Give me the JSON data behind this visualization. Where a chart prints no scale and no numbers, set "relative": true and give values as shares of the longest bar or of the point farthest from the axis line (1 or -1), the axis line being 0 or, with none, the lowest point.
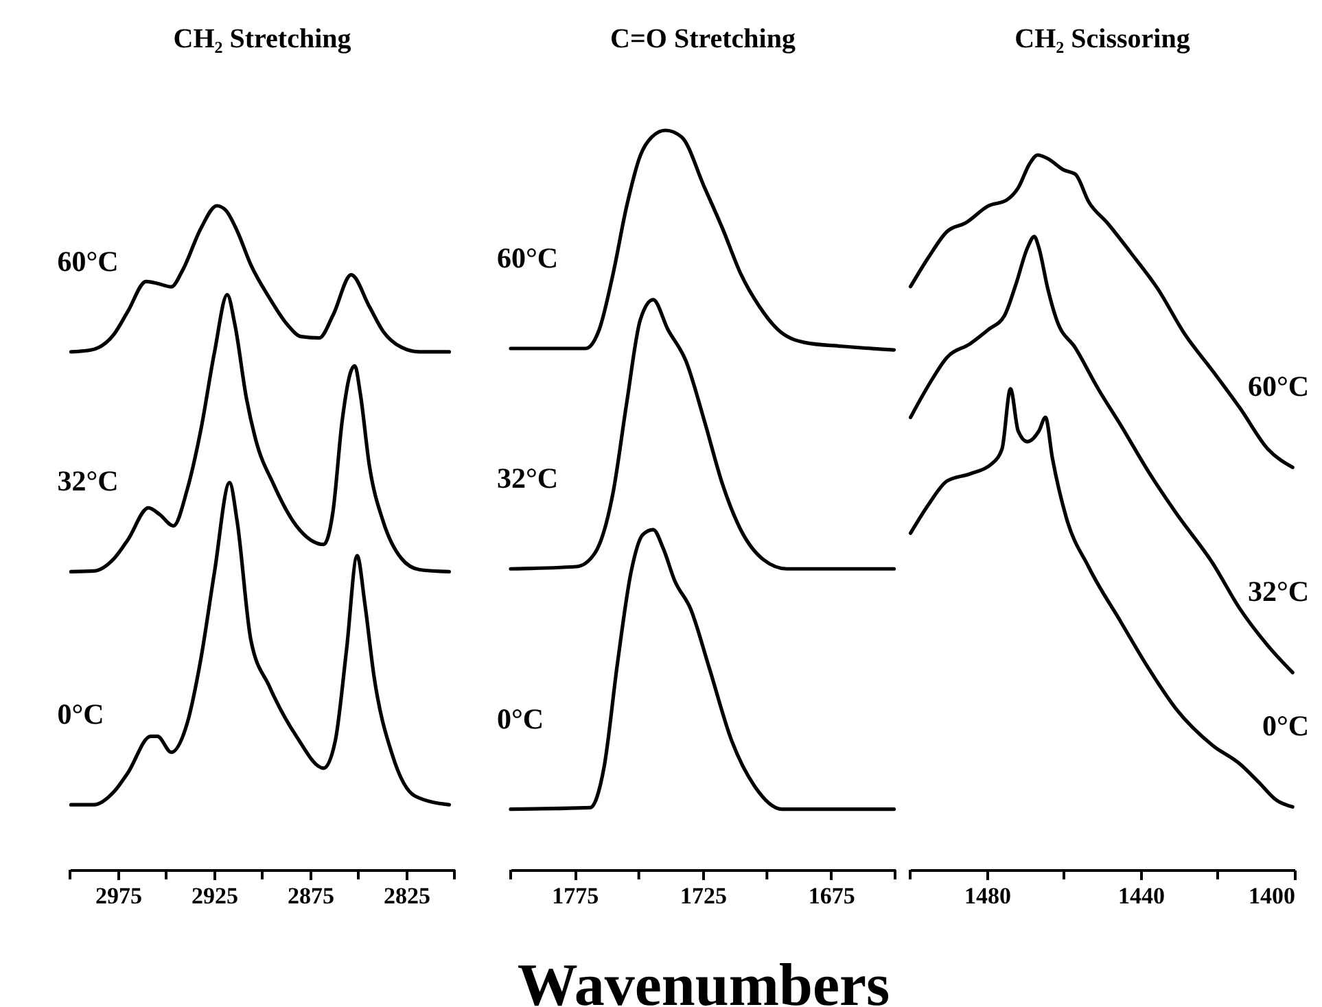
{
  "chart_data": [
    {
      "type": "line",
      "title": "CH₂ Stretching",
      "relative": true,
      "xlim": [
        3000,
        2800
      ],
      "xticks": [
        {
          "value": 3000,
          "label": null
        },
        2975,
        {
          "value": 2950,
          "label": null
        },
        2925,
        {
          "value": 2900,
          "label": null
        },
        2875,
        {
          "value": 2850,
          "label": null
        },
        2825,
        {
          "value": 2800,
          "label": null
        }
      ],
      "series": [
        {
          "name": "60°C",
          "color": "#000000",
          "x": [
            2999.5,
            2988.8,
            2977.0,
            2969.9,
            2960.4,
            2954.5,
            2947.3,
            2941.4,
            2931.9,
            2923.6,
            2918.9,
            2913.0,
            2905.9,
            2896.4,
            2886.9,
            2879.8,
            2870.3,
            2863.2,
            2853.7,
            2844.2,
            2837.1,
            2827.6,
            2818.1,
            2802.7
          ],
          "values": [
            0.78,
            0.783,
            0.807,
            0.841,
            0.886,
            0.883,
            0.878,
            0.903,
            0.966,
            1.0,
            0.993,
            0.962,
            0.911,
            0.862,
            0.821,
            0.803,
            0.801,
            0.835,
            0.896,
            0.848,
            0.811,
            0.787,
            0.78,
            0.78
          ]
        },
        {
          "name": "32°C",
          "color": "#000000",
          "x": [
            2999.5,
            2987.6,
            2977.0,
            2969.9,
            2959.2,
            2953.3,
            2946.2,
            2939.0,
            2931.9,
            2924.8,
            2918.2,
            2914.2,
            2908.2,
            2903.5,
            2894.0,
            2882.2,
            2868.0,
            2863.2,
            2858.4,
            2853.7,
            2851.8,
            2849.0,
            2844.2,
            2837.1,
            2827.6,
            2818.1,
            2802.7
          ],
          "values": [
            0.449,
            0.45,
            0.469,
            0.497,
            0.545,
            0.535,
            0.518,
            0.573,
            0.663,
            0.78,
            0.866,
            0.821,
            0.71,
            0.649,
            0.58,
            0.518,
            0.49,
            0.539,
            0.676,
            0.752,
            0.759,
            0.718,
            0.608,
            0.525,
            0.469,
            0.452,
            0.449
          ]
        },
        {
          "name": "0°C",
          "color": "#000000",
          "x": [
            2999.5,
            2987.6,
            2977.0,
            2969.9,
            2958.0,
            2954.5,
            2947.3,
            2939.0,
            2931.9,
            2924.8,
            2917.0,
            2913.0,
            2905.9,
            2896.4,
            2882.2,
            2868.0,
            2862.0,
            2856.1,
            2850.6,
            2846.6,
            2841.8,
            2832.4,
            2820.5,
            2802.7
          ],
          "values": [
            0.098,
            0.098,
            0.118,
            0.146,
            0.201,
            0.201,
            0.177,
            0.221,
            0.318,
            0.449,
            0.583,
            0.524,
            0.346,
            0.277,
            0.201,
            0.153,
            0.194,
            0.332,
            0.473,
            0.401,
            0.291,
            0.174,
            0.111,
            0.098
          ]
        }
      ]
    },
    {
      "type": "line",
      "title": "C=O Stretching",
      "xlabel": "Wavenumbers",
      "relative": true,
      "xlim": [
        1800,
        1650
      ],
      "xticks": [
        {
          "value": 1800,
          "label": null
        },
        1775,
        {
          "value": 1750,
          "label": null
        },
        1725,
        {
          "value": 1700,
          "label": null
        },
        1675,
        {
          "value": 1650,
          "label": null
        }
      ],
      "series": [
        {
          "name": "60°C",
          "color": "#000000",
          "x": [
            1800,
            1770.8,
            1765.4,
            1760.1,
            1754.7,
            1749.4,
            1744.9,
            1739.6,
            1733.3,
            1724.4,
            1717.3,
            1710.1,
            1703.0,
            1695.9,
            1685.2,
            1670.9,
            1650.4
          ],
          "values": [
            0.705,
            0.705,
            0.731,
            0.805,
            0.898,
            0.966,
            0.991,
            1.0,
            0.991,
            0.923,
            0.867,
            0.805,
            0.762,
            0.731,
            0.713,
            0.708,
            0.703
          ]
        },
        {
          "name": "32°C",
          "color": "#000000",
          "x": [
            1800,
            1774.3,
            1767.2,
            1760.1,
            1754.7,
            1749.4,
            1744.4,
            1738.7,
            1731.6,
            1724.4,
            1717.3,
            1710.1,
            1701.2,
            1692.3,
            1650.4
          ],
          "values": [
            0.407,
            0.41,
            0.428,
            0.509,
            0.632,
            0.744,
            0.771,
            0.731,
            0.688,
            0.607,
            0.521,
            0.459,
            0.419,
            0.407,
            0.407
          ]
        },
        {
          "name": "0°C",
          "color": "#000000",
          "x": [
            1800,
            1769.0,
            1763.6,
            1758.3,
            1753.0,
            1748.5,
            1744.4,
            1740.4,
            1736.0,
            1729.8,
            1722.6,
            1713.7,
            1704.8,
            1694.1,
            1650.4
          ],
          "values": [
            0.082,
            0.084,
            0.138,
            0.28,
            0.403,
            0.453,
            0.46,
            0.434,
            0.391,
            0.353,
            0.274,
            0.174,
            0.113,
            0.082,
            0.082
          ]
        }
      ]
    },
    {
      "type": "line",
      "title": "CH₂ Scissoring",
      "relative": true,
      "xlim": [
        1500,
        1400
      ],
      "xticks": [
        {
          "value": 1500,
          "label": null
        },
        1480,
        {
          "value": 1460,
          "label": null
        },
        1440,
        {
          "value": 1420,
          "label": null
        },
        1400
      ],
      "series": [
        {
          "name": "60°C",
          "color": "#000000",
          "x": [
            1499.9,
            1495.1,
            1490.4,
            1485.6,
            1479.6,
            1474.9,
            1471.9,
            1468.9,
            1466.8,
            1464.2,
            1460.0,
            1457.0,
            1453.5,
            1448.7,
            1442.7,
            1435.6,
            1428.5,
            1421.3,
            1414.2,
            1407.0,
            1400.5
          ],
          "values": [
            0.816,
            0.858,
            0.893,
            0.905,
            0.929,
            0.937,
            0.954,
            0.988,
            1.0,
            0.995,
            0.979,
            0.973,
            0.934,
            0.905,
            0.864,
            0.813,
            0.749,
            0.698,
            0.646,
            0.589,
            0.563
          ]
        },
        {
          "name": "32°C",
          "color": "#000000",
          "x": [
            1499.9,
            1495.1,
            1490.4,
            1484.4,
            1479.6,
            1475.5,
            1472.5,
            1469.5,
            1467.7,
            1466.5,
            1464.2,
            1461.8,
            1457.0,
            1451.1,
            1445.1,
            1438.0,
            1430.8,
            1421.3,
            1414.2,
            1407.0,
            1400.5
          ],
          "values": [
            0.633,
            0.679,
            0.717,
            0.736,
            0.756,
            0.775,
            0.819,
            0.87,
            0.886,
            0.87,
            0.813,
            0.768,
            0.73,
            0.673,
            0.621,
            0.557,
            0.499,
            0.429,
            0.365,
            0.314,
            0.276
          ]
        },
        {
          "name": "0°C",
          "color": "#000000",
          "x": [
            1499.9,
            1495.1,
            1490.4,
            1484.4,
            1479.0,
            1476.1,
            1473.9,
            1471.9,
            1469.5,
            1466.5,
            1464.8,
            1463.0,
            1459.4,
            1453.5,
            1445.1,
            1438.0,
            1430.8,
            1421.3,
            1414.2,
            1409.4,
            1404.6,
            1400.5
          ],
          "values": [
            0.471,
            0.512,
            0.544,
            0.554,
            0.567,
            0.589,
            0.673,
            0.614,
            0.599,
            0.614,
            0.633,
            0.576,
            0.493,
            0.423,
            0.346,
            0.282,
            0.225,
            0.174,
            0.148,
            0.123,
            0.097,
            0.088
          ]
        }
      ]
    }
  ]
}
